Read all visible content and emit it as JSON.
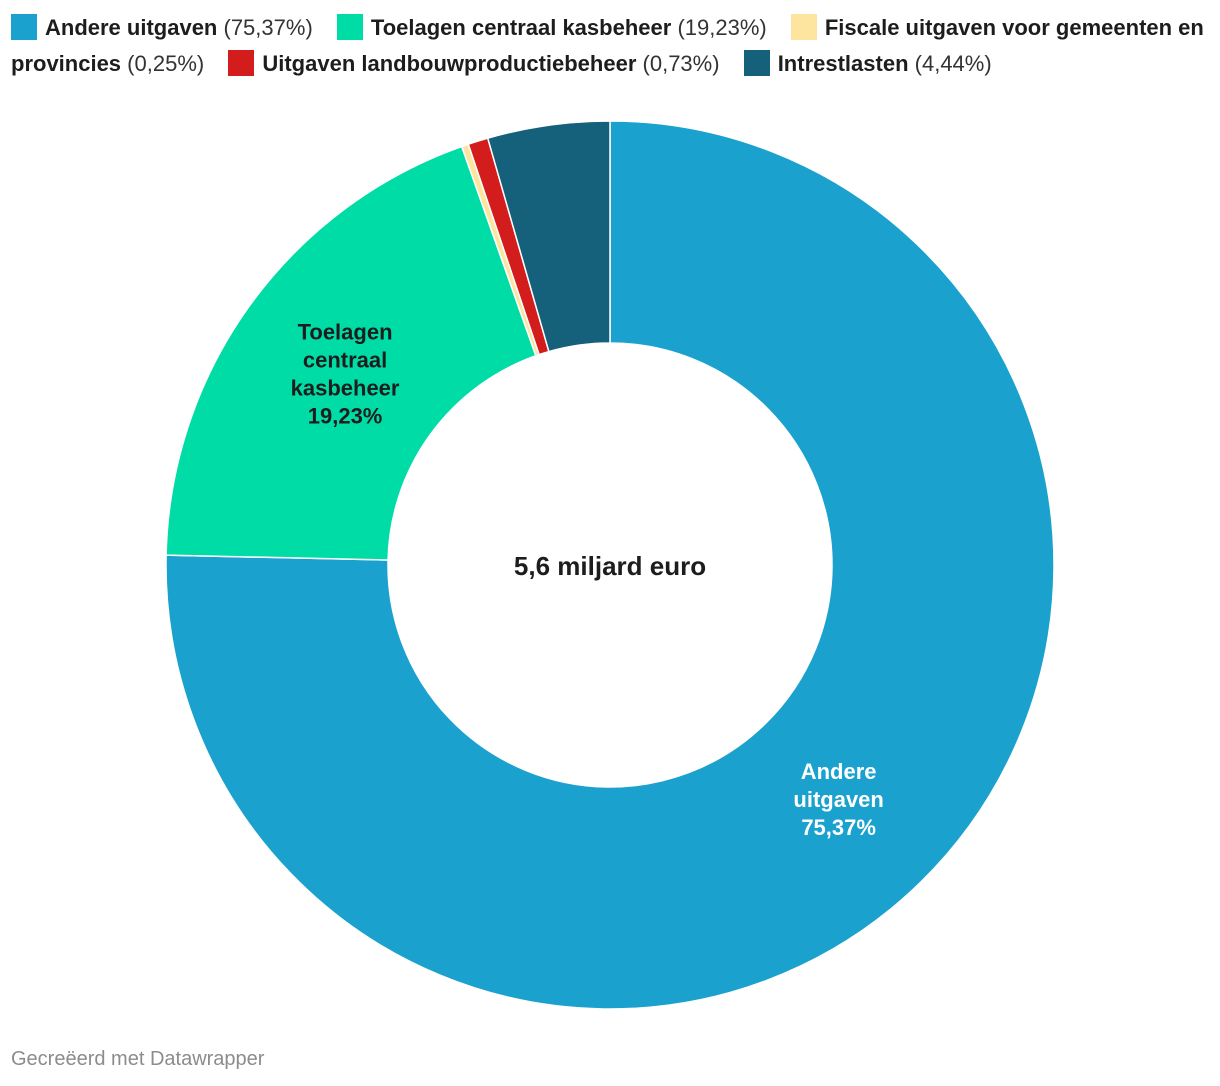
{
  "chart_data": {
    "type": "pie",
    "variant": "donut",
    "center_label": "5,6 miljard euro",
    "slices": [
      {
        "label": "Andere uitgaven",
        "value": 75.37,
        "display": "75,37%",
        "color": "#1aa1cd",
        "label_lines": [
          "Andere",
          "uitgaven",
          "75,37%"
        ],
        "label_color": "#ffffff"
      },
      {
        "label": "Toelagen centraal kasbeheer",
        "value": 19.23,
        "display": "19,23%",
        "color": "#00dca6",
        "label_lines": [
          "Toelagen",
          "centraal",
          "kasbeheer",
          "19,23%"
        ],
        "label_color": "#1d1d1d"
      },
      {
        "label": "Fiscale uitgaven voor gemeenten en provincies",
        "value": 0.25,
        "display": "0,25%",
        "color": "#fde49f",
        "label_lines": [],
        "label_color": "#1d1d1d"
      },
      {
        "label": "Uitgaven landbouwproductiebeheer",
        "value": 0.73,
        "display": "0,73%",
        "color": "#d31d1d",
        "label_lines": [],
        "label_color": "#ffffff"
      },
      {
        "label": "Intrestlasten",
        "value": 4.44,
        "display": "4,44%",
        "color": "#15607a",
        "label_lines": [],
        "label_color": "#ffffff"
      }
    ]
  },
  "legend": {
    "items": [
      {
        "label": "Andere uitgaven",
        "value": "(75,37%)",
        "color": "#1aa1cd"
      },
      {
        "label": "Toelagen centraal kasbeheer",
        "value": "(19,23%)",
        "color": "#00dca6"
      },
      {
        "label": "Fiscale uitgaven voor gemeenten en provincies",
        "value": "(0,25%)",
        "color": "#fde49f"
      },
      {
        "label": "Uitgaven landbouwproductiebeheer",
        "value": "(0,73%)",
        "color": "#d31d1d"
      },
      {
        "label": "Intrestlasten",
        "value": "(4,44%)",
        "color": "#15607a"
      }
    ]
  },
  "footer": {
    "credit": "Gecreëerd met Datawrapper"
  }
}
